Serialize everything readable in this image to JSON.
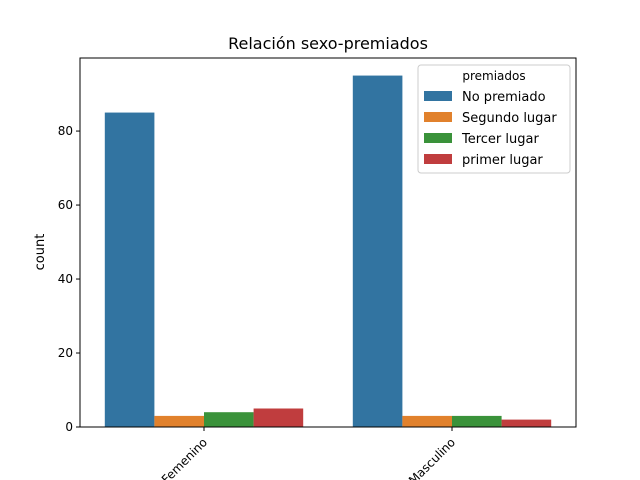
{
  "chart_data": {
    "type": "bar",
    "title": "Relación sexo-premiados",
    "xlabel": "",
    "ylabel": "count",
    "categories": [
      "Femenino",
      "Masculino"
    ],
    "series": [
      {
        "name": "No premiado",
        "color": "#3274a1",
        "values": [
          85,
          95
        ]
      },
      {
        "name": "Segundo lugar",
        "color": "#e1812c",
        "values": [
          3,
          3
        ]
      },
      {
        "name": "Tercer lugar",
        "color": "#3a923a",
        "values": [
          4,
          3
        ]
      },
      {
        "name": "primer lugar",
        "color": "#c03d3e",
        "values": [
          5,
          2
        ]
      }
    ],
    "ylim": [
      0,
      99.75
    ],
    "yticks": [
      0,
      20,
      40,
      60,
      80
    ],
    "grid": false,
    "legend": {
      "title": "premiados",
      "placement": "top-right"
    },
    "xtick_rotation": 45
  }
}
